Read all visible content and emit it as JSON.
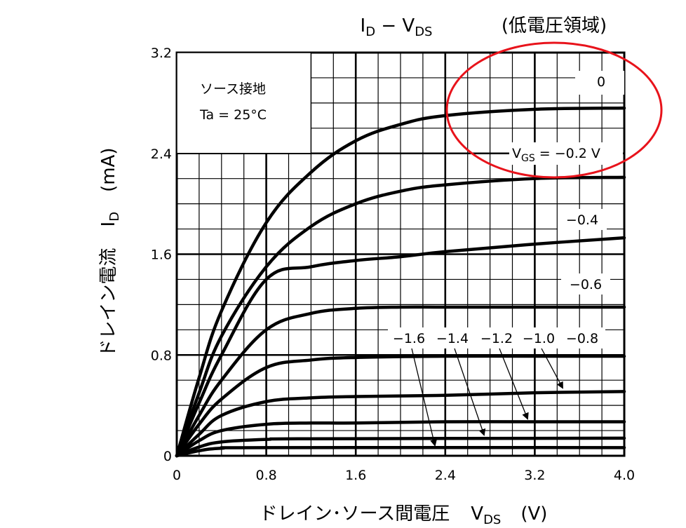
{
  "chart_data": {
    "type": "line",
    "title": {
      "id": "I",
      "id_sub": "D",
      "dash": " − ",
      "vds": "V",
      "vds_sub": "DS",
      "note": "(低電圧領域)"
    },
    "xlabel": {
      "text": "ドレイン･ソース間電圧",
      "sym": "V",
      "sub": "DS",
      "unit": "(V)"
    },
    "ylabel": {
      "text": "ドレイン電流",
      "sym": "I",
      "sub": "D",
      "unit": "(mA)"
    },
    "xlim": [
      0,
      4.0
    ],
    "ylim": [
      0,
      3.2
    ],
    "x_ticks": [
      "0",
      "0.8",
      "1.6",
      "2.4",
      "3.2",
      "4.0"
    ],
    "y_ticks": [
      "0",
      "0.8",
      "1.6",
      "2.4",
      "3.2"
    ],
    "grid": true,
    "conditions": [
      "ソース接地",
      "Ta = 25°C"
    ],
    "vgs_label": {
      "sym": "V",
      "sub": "GS",
      "rest": " = −0.2 V"
    },
    "curve_labels": [
      "0",
      "−0.4",
      "−0.6",
      "−0.8",
      "−1.0",
      "−1.2",
      "−1.4",
      "−1.6"
    ],
    "series": [
      {
        "name": "0",
        "x": [
          0,
          0.2,
          0.4,
          0.8,
          1.2,
          1.6,
          2.0,
          2.4,
          3.2,
          4.0
        ],
        "y": [
          0,
          0.62,
          1.15,
          1.85,
          2.25,
          2.5,
          2.63,
          2.7,
          2.75,
          2.76
        ]
      },
      {
        "name": "−0.2",
        "x": [
          0,
          0.2,
          0.4,
          0.8,
          1.2,
          1.6,
          2.0,
          2.4,
          3.2,
          4.0
        ],
        "y": [
          0,
          0.5,
          0.95,
          1.5,
          1.82,
          2.0,
          2.1,
          2.15,
          2.2,
          2.21
        ]
      },
      {
        "name": "−0.4",
        "x": [
          0,
          0.2,
          0.4,
          0.8,
          1.2,
          1.6,
          2.0,
          2.4,
          3.2,
          4.0
        ],
        "y": [
          0,
          0.42,
          0.8,
          1.4,
          1.5,
          1.55,
          1.58,
          1.62,
          1.68,
          1.73
        ]
      },
      {
        "name": "−0.6",
        "x": [
          0,
          0.2,
          0.4,
          0.8,
          1.2,
          1.6,
          2.0,
          2.4,
          3.2,
          4.0
        ],
        "y": [
          0,
          0.32,
          0.6,
          1.0,
          1.13,
          1.17,
          1.18,
          1.18,
          1.18,
          1.18
        ]
      },
      {
        "name": "−0.8",
        "x": [
          0,
          0.2,
          0.4,
          0.8,
          1.2,
          1.6,
          2.4,
          3.2,
          4.0
        ],
        "y": [
          0,
          0.25,
          0.45,
          0.7,
          0.76,
          0.78,
          0.79,
          0.79,
          0.79
        ]
      },
      {
        "name": "−1.0",
        "x": [
          0,
          0.2,
          0.4,
          0.8,
          1.2,
          1.6,
          2.4,
          3.2,
          4.0
        ],
        "y": [
          0,
          0.17,
          0.32,
          0.43,
          0.46,
          0.47,
          0.48,
          0.5,
          0.51
        ]
      },
      {
        "name": "−1.2",
        "x": [
          0,
          0.2,
          0.4,
          0.8,
          1.2,
          1.6,
          2.4,
          3.2,
          4.0
        ],
        "y": [
          0,
          0.12,
          0.2,
          0.25,
          0.26,
          0.26,
          0.27,
          0.27,
          0.27
        ]
      },
      {
        "name": "−1.4",
        "x": [
          0,
          0.2,
          0.4,
          0.8,
          1.2,
          4.0
        ],
        "y": [
          0,
          0.07,
          0.11,
          0.13,
          0.135,
          0.14
        ]
      },
      {
        "name": "−1.6",
        "x": [
          0,
          0.2,
          0.4,
          0.8,
          4.0
        ],
        "y": [
          0,
          0.04,
          0.06,
          0.065,
          0.065
        ]
      }
    ],
    "annotation_color": "#e8131b"
  }
}
